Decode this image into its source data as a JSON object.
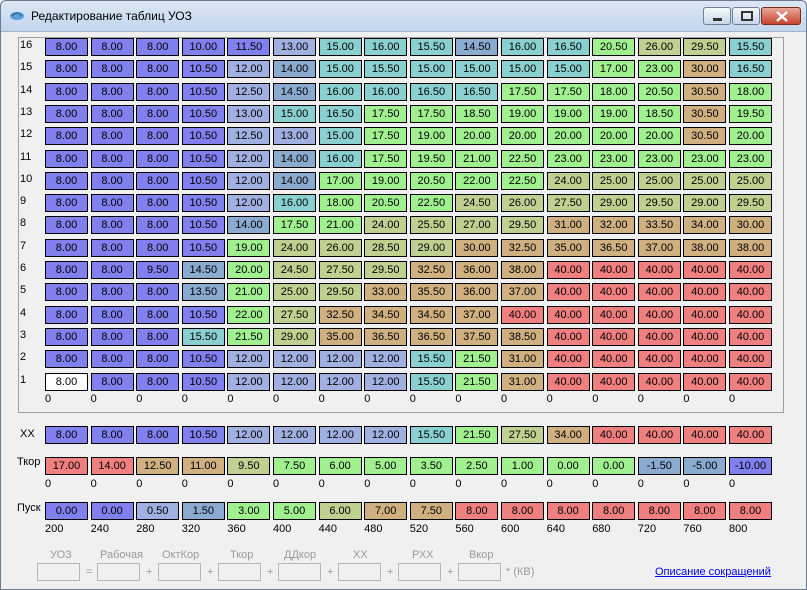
{
  "window": {
    "title": "Редактирование таблиц УОЗ"
  },
  "rows": [
    "16",
    "15",
    "14",
    "13",
    "12",
    "11",
    "10",
    "9",
    "8",
    "7",
    "6",
    "5",
    "4",
    "3",
    "2",
    "1"
  ],
  "grid": [
    [
      "8.00",
      "8.00",
      "8.00",
      "10.00",
      "11.50",
      "13.00",
      "15.00",
      "16.00",
      "15.50",
      "14.50",
      "16.00",
      "16.50",
      "20.50",
      "26.00",
      "29.50",
      "15.50"
    ],
    [
      "8.00",
      "8.00",
      "8.00",
      "10.50",
      "12.00",
      "14.00",
      "15.00",
      "15.50",
      "15.00",
      "15.00",
      "15.00",
      "15.00",
      "17.00",
      "23.00",
      "30.00",
      "16.50"
    ],
    [
      "8.00",
      "8.00",
      "8.00",
      "10.50",
      "12.50",
      "14.50",
      "16.00",
      "16.00",
      "16.50",
      "16.50",
      "17.50",
      "17.50",
      "18.00",
      "20.50",
      "30.50",
      "18.00"
    ],
    [
      "8.00",
      "8.00",
      "8.00",
      "10.50",
      "13.00",
      "15.00",
      "16.50",
      "17.50",
      "17.50",
      "18.50",
      "19.00",
      "19.00",
      "19.00",
      "18.50",
      "30.50",
      "19.50"
    ],
    [
      "8.00",
      "8.00",
      "8.00",
      "10.50",
      "12.50",
      "13.00",
      "15.00",
      "17.50",
      "19.00",
      "20.00",
      "20.00",
      "20.00",
      "20.00",
      "20.00",
      "30.50",
      "20.00"
    ],
    [
      "8.00",
      "8.00",
      "8.00",
      "10.50",
      "12.00",
      "14.00",
      "16.00",
      "17.50",
      "19.50",
      "21.00",
      "22.50",
      "23.00",
      "23.00",
      "23.00",
      "23.00",
      "23.00"
    ],
    [
      "8.00",
      "8.00",
      "8.00",
      "10.50",
      "12.00",
      "14.00",
      "17.00",
      "19.00",
      "20.50",
      "22.00",
      "22.50",
      "24.00",
      "25.00",
      "25.00",
      "25.00",
      "25.00"
    ],
    [
      "8.00",
      "8.00",
      "8.00",
      "10.50",
      "12.00",
      "16.00",
      "18.00",
      "20.50",
      "22.50",
      "24.50",
      "26.00",
      "27.50",
      "29.00",
      "29.50",
      "29.00",
      "29.50"
    ],
    [
      "8.00",
      "8.00",
      "8.00",
      "10.50",
      "14.00",
      "17.50",
      "21.00",
      "24.00",
      "25.50",
      "27.00",
      "29.50",
      "31.00",
      "32.00",
      "33.50",
      "34.00",
      "30.00"
    ],
    [
      "8.00",
      "8.00",
      "8.00",
      "10.50",
      "19.00",
      "24.00",
      "26.00",
      "28.50",
      "29.00",
      "30.00",
      "32.50",
      "35.00",
      "36.50",
      "37.00",
      "38.00",
      "38.00"
    ],
    [
      "8.00",
      "8.00",
      "9.50",
      "14.50",
      "20.00",
      "24.50",
      "27.50",
      "29.50",
      "32.50",
      "36.00",
      "38.00",
      "40.00",
      "40.00",
      "40.00",
      "40.00",
      "40.00"
    ],
    [
      "8.00",
      "8.00",
      "8.00",
      "13.50",
      "21.00",
      "25.00",
      "29.50",
      "33.00",
      "35.50",
      "36.00",
      "37.00",
      "40.00",
      "40.00",
      "40.00",
      "40.00",
      "40.00"
    ],
    [
      "8.00",
      "8.00",
      "8.00",
      "10.50",
      "22.00",
      "27.50",
      "32.50",
      "34.50",
      "34.50",
      "37.00",
      "40.00",
      "40.00",
      "40.00",
      "40.00",
      "40.00",
      "40.00"
    ],
    [
      "8.00",
      "8.00",
      "8.00",
      "15.50",
      "21.50",
      "29.00",
      "35.00",
      "36.50",
      "36.50",
      "37.50",
      "38.50",
      "40.00",
      "40.00",
      "40.00",
      "40.00",
      "40.00"
    ],
    [
      "8.00",
      "8.00",
      "8.00",
      "10.50",
      "12.00",
      "12.00",
      "12.00",
      "12.00",
      "15.50",
      "21.50",
      "31.00",
      "40.00",
      "40.00",
      "40.00",
      "40.00",
      "40.00"
    ],
    [
      "8.00",
      "8.00",
      "8.00",
      "10.50",
      "12.00",
      "12.00",
      "12.00",
      "12.00",
      "15.50",
      "21.50",
      "31.00",
      "40.00",
      "40.00",
      "40.00",
      "40.00",
      "40.00"
    ]
  ],
  "grid_col_labels": [
    "0",
    "0",
    "0",
    "0",
    "0",
    "0",
    "0",
    "0",
    "0",
    "0",
    "0",
    "0",
    "0",
    "0",
    "0",
    "0"
  ],
  "xx": {
    "label": "ХХ",
    "values": [
      "8.00",
      "8.00",
      "8.00",
      "10.50",
      "12.00",
      "12.00",
      "12.00",
      "12.00",
      "15.50",
      "21.50",
      "27.50",
      "34.00",
      "40.00",
      "40.00",
      "40.00",
      "40.00"
    ]
  },
  "tkor": {
    "label": "Ткор",
    "values": [
      "17.00",
      "14.00",
      "12.50",
      "11.00",
      "9.50",
      "7.50",
      "6.00",
      "5.00",
      "3.50",
      "2.50",
      "1.00",
      "0.00",
      "0.00",
      "-1.50",
      "-5.00",
      "-10.00"
    ],
    "col_labels": [
      "0",
      "0",
      "0",
      "0",
      "0",
      "0",
      "0",
      "0",
      "0",
      "0",
      "0",
      "0",
      "0",
      "0",
      "0",
      "0"
    ]
  },
  "pusk": {
    "label": "Пуск",
    "values": [
      "0.00",
      "0.00",
      "0.50",
      "1.50",
      "3.00",
      "5.00",
      "6.00",
      "7.00",
      "7.50",
      "8.00",
      "8.00",
      "8.00",
      "8.00",
      "8.00",
      "8.00",
      "8.00"
    ],
    "col_labels": [
      "200",
      "240",
      "280",
      "320",
      "360",
      "400",
      "440",
      "480",
      "520",
      "560",
      "600",
      "640",
      "680",
      "720",
      "760",
      "800"
    ]
  },
  "footer": {
    "labels": [
      "УОЗ",
      "Рабочая",
      "ОктКор",
      "Ткор",
      "ДДкор",
      "ХХ",
      "РХХ",
      "Вкор"
    ],
    "ops": [
      "=",
      "+",
      "+",
      "+",
      "+",
      "+",
      "+"
    ],
    "unit": "* (КВ)",
    "link": "Описание сокращений"
  },
  "colors": {
    "blue": "#8080ee",
    "slate": "#8aaad0",
    "teal": "#8ad0d0",
    "green": "#a0f090",
    "olive": "#c0d090",
    "tan": "#d0b080",
    "red": "#f08080",
    "grayblue": "#a0b0e0"
  }
}
